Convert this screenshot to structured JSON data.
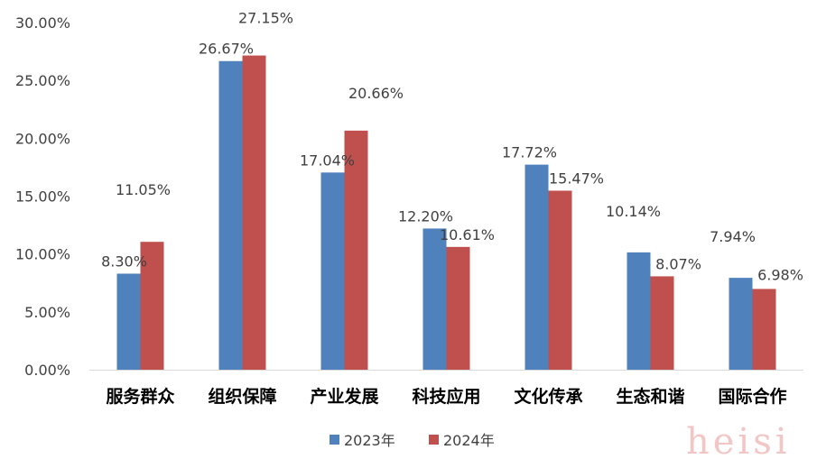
{
  "chart_data": {
    "type": "bar",
    "categories": [
      "服务群众",
      "组织保障",
      "产业发展",
      "科技应用",
      "文化传承",
      "生态和谐",
      "国际合作"
    ],
    "series": [
      {
        "name": "2023年",
        "color": "#4f81bd",
        "values": [
          8.3,
          26.67,
          17.04,
          12.2,
          17.72,
          10.14,
          7.94
        ],
        "labels": [
          "8.30%",
          "26.67%",
          "17.04%",
          "12.20%",
          "17.72%",
          "10.14%",
          "7.94%"
        ]
      },
      {
        "name": "2024年",
        "color": "#c0504d",
        "values": [
          11.05,
          27.15,
          20.66,
          10.61,
          15.47,
          8.07,
          6.98
        ],
        "labels": [
          "11.05%",
          "27.15%",
          "20.66%",
          "10.61%",
          "15.47%",
          "8.07%",
          "6.98%"
        ]
      }
    ],
    "yticks": [
      "0.00%",
      "5.00%",
      "10.00%",
      "15.00%",
      "20.00%",
      "25.00%",
      "30.00%"
    ],
    "ylim": [
      0,
      30
    ],
    "title": "",
    "xlabel": "",
    "ylabel": "",
    "grid": false,
    "legend_position": "bottom"
  },
  "watermark": "heisi"
}
